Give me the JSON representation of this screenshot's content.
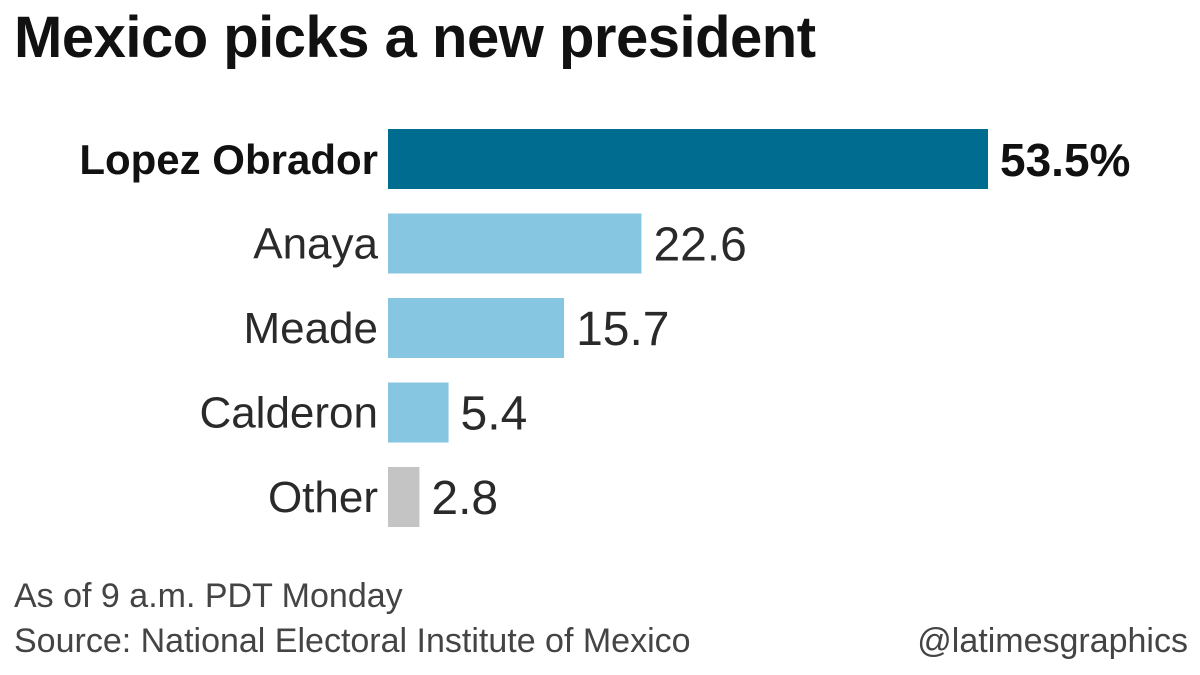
{
  "title": "Mexico picks a new president",
  "chart_data": {
    "type": "bar",
    "orientation": "horizontal",
    "categories": [
      "Lopez Obrador",
      "Anaya",
      "Meade",
      "Calderon",
      "Other"
    ],
    "values": [
      53.5,
      22.6,
      15.7,
      5.4,
      2.8
    ],
    "value_labels": [
      "53.5%",
      "22.6",
      "15.7",
      "5.4",
      "2.8"
    ],
    "colors": [
      "#006c8f",
      "#86c6e0",
      "#86c6e0",
      "#86c6e0",
      "#c4c4c4"
    ],
    "highlight": "Lopez Obrador",
    "xlim": [
      0,
      53.5
    ],
    "grid": false,
    "legend": "none"
  },
  "footer": {
    "note": "As of 9 a.m. PDT Monday",
    "source": "Source: National Electoral Institute of Mexico",
    "credit": "@latimesgraphics"
  }
}
